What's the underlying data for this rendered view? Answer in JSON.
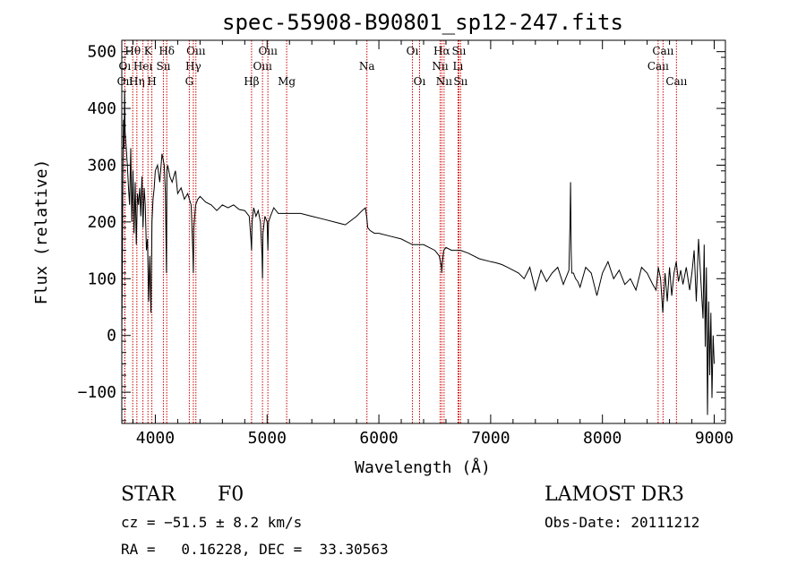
{
  "chart_data": {
    "type": "line",
    "title": "spec-55908-B90801_sp12-247.fits",
    "xlabel": "Wavelength (Å)",
    "ylabel": "Flux (relative)",
    "xlim": [
      3700,
      9100
    ],
    "ylim": [
      -155,
      520
    ],
    "xticks": [
      4000,
      5000,
      6000,
      7000,
      8000,
      9000
    ],
    "yticks": [
      -100,
      0,
      100,
      200,
      300,
      400,
      500
    ],
    "xtick_labels": [
      "4000",
      "5000",
      "6000",
      "7000",
      "8000",
      "9000"
    ],
    "ytick_labels": [
      "−100",
      "0",
      "100",
      "200",
      "300",
      "400",
      "500"
    ],
    "series": [
      {
        "name": "flux",
        "x": [
          3700,
          3705,
          3710,
          3715,
          3720,
          3725,
          3730,
          3740,
          3750,
          3760,
          3770,
          3780,
          3790,
          3800,
          3810,
          3820,
          3830,
          3840,
          3850,
          3860,
          3870,
          3880,
          3890,
          3900,
          3910,
          3920,
          3930,
          3940,
          3950,
          3960,
          3970,
          3980,
          3990,
          4000,
          4020,
          4040,
          4060,
          4080,
          4090,
          4100,
          4102,
          4104,
          4110,
          4130,
          4150,
          4180,
          4200,
          4230,
          4260,
          4290,
          4320,
          4335,
          4340,
          4345,
          4360,
          4380,
          4400,
          4450,
          4500,
          4550,
          4600,
          4650,
          4700,
          4750,
          4800,
          4840,
          4855,
          4861,
          4866,
          4880,
          4900,
          4920,
          4940,
          4955,
          4959,
          4963,
          4980,
          5000,
          5007,
          5013,
          5030,
          5060,
          5100,
          5150,
          5200,
          5300,
          5400,
          5500,
          5600,
          5700,
          5800,
          5850,
          5880,
          5893,
          5900,
          5920,
          5960,
          6000,
          6100,
          6200,
          6300,
          6400,
          6500,
          6540,
          6560,
          6563,
          6568,
          6580,
          6600,
          6650,
          6700,
          6730,
          6800,
          6900,
          7000,
          7050,
          7100,
          7150,
          7200,
          7250,
          7300,
          7350,
          7400,
          7450,
          7500,
          7550,
          7600,
          7650,
          7700,
          7710,
          7715,
          7720,
          7725,
          7730,
          7740,
          7760,
          7780,
          7800,
          7850,
          7900,
          7950,
          8000,
          8050,
          8100,
          8150,
          8200,
          8250,
          8300,
          8350,
          8400,
          8450,
          8480,
          8500,
          8520,
          8540,
          8560,
          8580,
          8600,
          8620,
          8640,
          8660,
          8680,
          8700,
          8720,
          8750,
          8780,
          8800,
          8820,
          8840,
          8860,
          8880,
          8900,
          8910,
          8920,
          8930,
          8940,
          8950,
          8960,
          8970,
          8980,
          8990,
          9000
        ],
        "values": [
          0,
          120,
          280,
          380,
          330,
          430,
          360,
          330,
          300,
          260,
          230,
          330,
          200,
          290,
          180,
          270,
          160,
          250,
          230,
          260,
          210,
          280,
          190,
          260,
          230,
          150,
          170,
          60,
          140,
          40,
          200,
          240,
          260,
          290,
          300,
          270,
          320,
          300,
          250,
          110,
          230,
          290,
          300,
          280,
          270,
          290,
          250,
          260,
          240,
          250,
          230,
          150,
          110,
          190,
          230,
          240,
          245,
          235,
          230,
          220,
          230,
          225,
          230,
          222,
          220,
          210,
          170,
          150,
          200,
          225,
          210,
          220,
          200,
          140,
          100,
          180,
          210,
          200,
          150,
          200,
          210,
          225,
          215,
          215,
          215,
          215,
          210,
          205,
          200,
          195,
          210,
          220,
          225,
          205,
          190,
          185,
          180,
          180,
          175,
          170,
          160,
          160,
          150,
          140,
          120,
          110,
          130,
          150,
          155,
          150,
          150,
          150,
          145,
          135,
          130,
          128,
          125,
          120,
          115,
          110,
          100,
          120,
          80,
          115,
          95,
          110,
          120,
          90,
          115,
          200,
          270,
          150,
          110,
          110,
          110,
          100,
          95,
          85,
          120,
          110,
          70,
          110,
          130,
          100,
          115,
          90,
          100,
          80,
          120,
          110,
          90,
          80,
          120,
          100,
          40,
          110,
          60,
          120,
          70,
          110,
          130,
          95,
          115,
          90,
          120,
          80,
          110,
          150,
          60,
          170,
          100,
          30,
          160,
          -20,
          120,
          -140,
          60,
          -70,
          40,
          -110,
          0,
          -50
        ]
      }
    ],
    "emission_lines": [
      {
        "label": "Oıı",
        "wavelength": 3727,
        "row": 3
      },
      {
        "label": "Hθ",
        "wavelength": 3798,
        "row": 1
      },
      {
        "label": "Oı",
        "wavelength": 3727,
        "row": 2
      },
      {
        "label": "Hη",
        "wavelength": 3835,
        "row": 3
      },
      {
        "label": "Heı",
        "wavelength": 3889,
        "row": 2
      },
      {
        "label": "K",
        "wavelength": 3934,
        "row": 1
      },
      {
        "label": "H",
        "wavelength": 3969,
        "row": 3
      },
      {
        "label": "Sıı",
        "wavelength": 4072,
        "row": 2
      },
      {
        "label": "Hδ",
        "wavelength": 4102,
        "row": 1
      },
      {
        "label": "Oııı",
        "wavelength": 4363,
        "row": 1
      },
      {
        "label": "Hγ",
        "wavelength": 4340,
        "row": 2
      },
      {
        "label": "G",
        "wavelength": 4304,
        "row": 3
      },
      {
        "label": "Hβ",
        "wavelength": 4861,
        "row": 3
      },
      {
        "label": "Oııı",
        "wavelength": 4959,
        "row": 2
      },
      {
        "label": "Oııı",
        "wavelength": 5007,
        "row": 1
      },
      {
        "label": "Mg",
        "wavelength": 5175,
        "row": 3
      },
      {
        "label": "Na",
        "wavelength": 5893,
        "row": 2
      },
      {
        "label": "Oı",
        "wavelength": 6300,
        "row": 1
      },
      {
        "label": "Oı",
        "wavelength": 6364,
        "row": 3
      },
      {
        "label": "Nıı",
        "wavelength": 6548,
        "row": 2
      },
      {
        "label": "Hα",
        "wavelength": 6563,
        "row": 1
      },
      {
        "label": "Nıı",
        "wavelength": 6583,
        "row": 3
      },
      {
        "label": "Lı",
        "wavelength": 6708,
        "row": 2
      },
      {
        "label": "Sıı",
        "wavelength": 6716,
        "row": 1
      },
      {
        "label": "Sıı",
        "wavelength": 6731,
        "row": 3
      },
      {
        "label": "Caıı",
        "wavelength": 8498,
        "row": 2
      },
      {
        "label": "Caıı",
        "wavelength": 8542,
        "row": 1
      },
      {
        "label": "Caıı",
        "wavelength": 8662,
        "row": 3
      }
    ],
    "line_color": "#000000",
    "marker_color": "#cc0000"
  },
  "info": {
    "object_class": "STAR",
    "subclass": "F0",
    "survey": "LAMOST DR3",
    "cz": "cz = −51.5 ± 8.2 km/s",
    "obs_date": "Obs-Date: 20111212",
    "coords": "RA =   0.16228, DEC =  33.30563"
  }
}
